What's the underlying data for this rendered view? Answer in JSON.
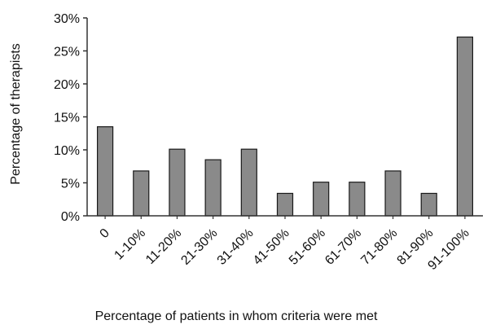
{
  "chart_data": {
    "type": "bar",
    "categories": [
      "0",
      "1-10%",
      "11-20%",
      "21-30%",
      "31-40%",
      "41-50%",
      "51-60%",
      "61-70%",
      "71-80%",
      "81-90%",
      "91-100%"
    ],
    "values": [
      13.5,
      6.8,
      10.1,
      8.5,
      10.1,
      3.4,
      5.1,
      5.1,
      6.8,
      3.4,
      27.1
    ],
    "xlabel": "Percentage of patients in whom criteria were met",
    "ylabel": "Percentage of therapists",
    "ylim": [
      0,
      30
    ],
    "yticks": [
      "0%",
      "5%",
      "10%",
      "15%",
      "20%",
      "25%",
      "30%"
    ],
    "grid": false,
    "colors": {
      "bar_fill": "#8a8a8a",
      "bar_stroke": "#1a1a1a",
      "axis": "#333333"
    }
  }
}
